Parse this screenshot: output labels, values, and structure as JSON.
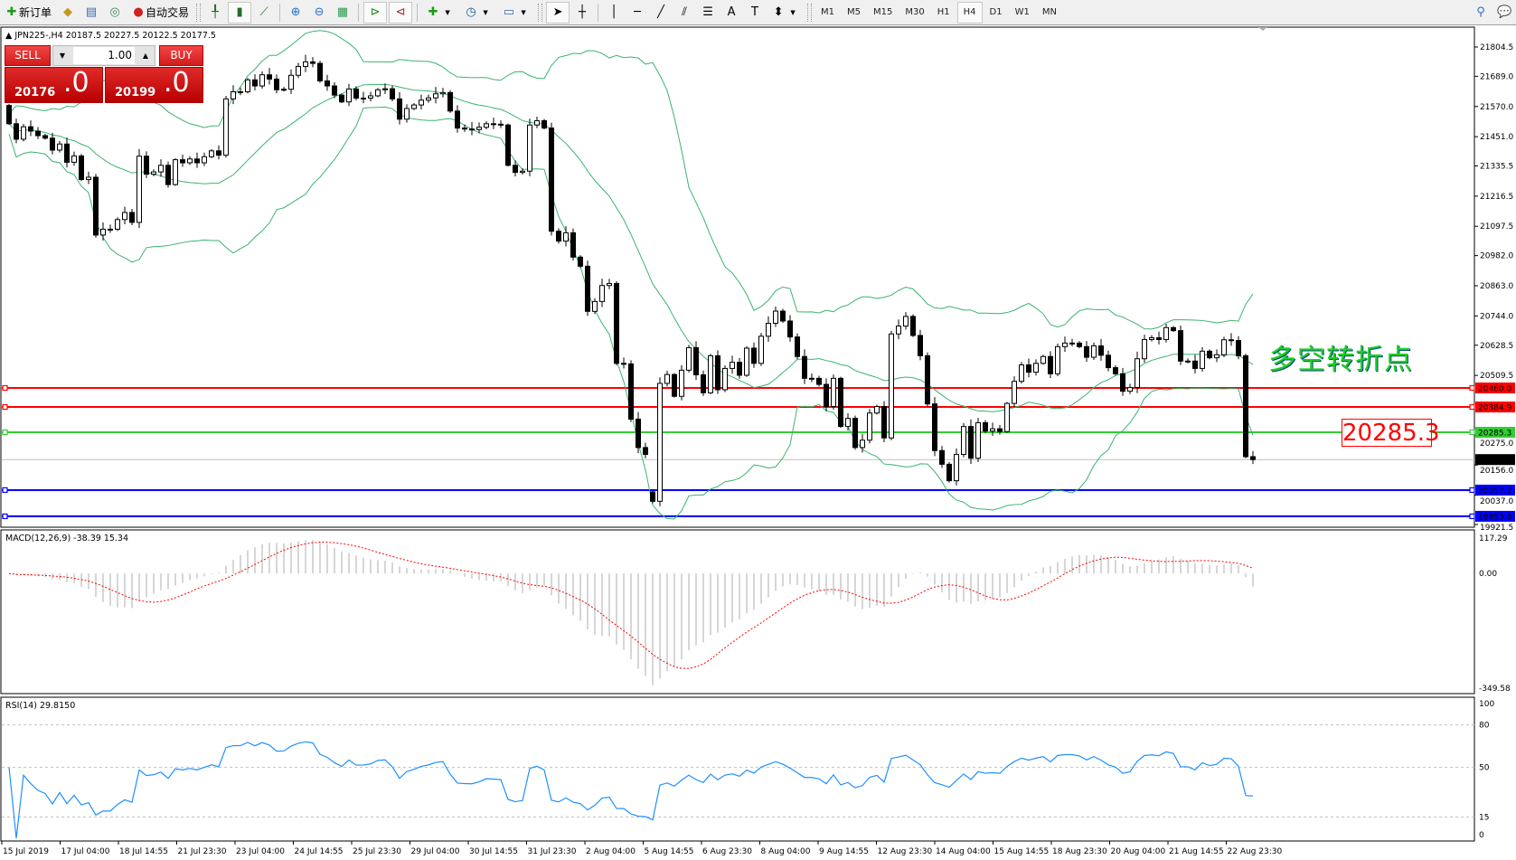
{
  "toolbar": {
    "new_order": "新订单",
    "auto_trading": "自动交易",
    "icons": [
      "new-order-icon",
      "gold-bars-icon",
      "market-watch-icon",
      "signals-icon",
      "auto-trading-icon",
      "bar-chart-icon",
      "candlestick-icon",
      "line-chart-icon",
      "zoom-in-icon",
      "zoom-out-icon",
      "tile-windows-icon",
      "chart-shift-icon",
      "autoscroll-icon",
      "indicators-icon",
      "periods-icon",
      "templates-icon",
      "cursor-icon",
      "crosshair-icon",
      "vertical-line-icon",
      "horizontal-line-icon",
      "trendline-icon",
      "equidistant-channel-icon",
      "fibonacci-icon",
      "text-icon",
      "text-label-icon",
      "arrows-icon",
      "search-icon",
      "chat-icon"
    ],
    "timeframes": [
      "M1",
      "M5",
      "M15",
      "M30",
      "H1",
      "H4",
      "D1",
      "W1",
      "MN"
    ],
    "active_timeframe": "H4"
  },
  "chart": {
    "symbol_info": "JPN225-,H4  20187.5 20227.5 20122.5 20177.5",
    "trade_panel": {
      "sell_label": "SELL",
      "buy_label": "BUY",
      "lot": "1.00",
      "sell_price_main": "20176",
      "sell_price_frac": ".0",
      "buy_price_main": "20199",
      "buy_price_frac": ".0"
    },
    "annotation_text": "多空转折点",
    "annotation_price": "20285.3",
    "price_axis": [
      "21804.5",
      "21689.0",
      "21570.0",
      "21451.0",
      "21335.5",
      "21216.5",
      "21097.5",
      "20982.0",
      "20863.0",
      "20744.0",
      "20628.5",
      "20509.5",
      "20275.0",
      "20156.0",
      "20037.0",
      "19921.5"
    ],
    "levels": [
      {
        "price": 20460.0,
        "label": "20460.0",
        "color": "#ff0000"
      },
      {
        "price": 20384.9,
        "label": "20384.9",
        "color": "#ff0000"
      },
      {
        "price": 20285.3,
        "label": "20285.3",
        "color": "#32cd32"
      },
      {
        "price": 20177.5,
        "label": "20177.5",
        "color": "#000000"
      },
      {
        "price": 20057.2,
        "label": "20057.2",
        "color": "#0000ff"
      },
      {
        "price": 19953.8,
        "label": "19953.8",
        "color": "#0000ff"
      }
    ],
    "colors": {
      "bands": "#3cb371",
      "bull": "#ffffff",
      "bear": "#000000",
      "macd_hist": "#c0c0c0",
      "macd_signal": "#ff0000",
      "rsi": "#1e90ff"
    },
    "first_open": 21574,
    "closes": [
      21502,
      21441,
      21490,
      21473,
      21455,
      21445,
      21398,
      21422,
      21350,
      21375,
      21282,
      21291,
      21063,
      21086,
      21086,
      21124,
      21152,
      21113,
      21374,
      21303,
      21312,
      21338,
      21262,
      21360,
      21348,
      21363,
      21348,
      21372,
      21395,
      21378,
      21600,
      21628,
      21628,
      21675,
      21651,
      21695,
      21678,
      21636,
      21638,
      21693,
      21728,
      21746,
      21740,
      21671,
      21651,
      21615,
      21588,
      21639,
      21603,
      21603,
      21612,
      21636,
      21640,
      21600,
      21520,
      21562,
      21576,
      21595,
      21604,
      21620,
      21625,
      21552,
      21485,
      21481,
      21479,
      21488,
      21502,
      21500,
      21497,
      21338,
      21310,
      21315,
      21497,
      21514,
      21485,
      21078,
      21039,
      21072,
      20976,
      20940,
      20762,
      20801,
      20864,
      20872,
      20557,
      20555,
      20337,
      20225,
      20198,
      20013,
      20478,
      20513,
      20427,
      20530,
      20619,
      20512,
      20441,
      20587,
      20453,
      20537,
      20561,
      20510,
      20617,
      20557,
      20664,
      20715,
      20763,
      20724,
      20661,
      20584,
      20498,
      20498,
      20474,
      20387,
      20498,
      20308,
      20340,
      20225,
      20254,
      20361,
      20387,
      20263,
      20673,
      20704,
      20742,
      20667,
      20587,
      20397,
      20213,
      20159,
      20094,
      20198,
      20308,
      20183,
      20323,
      20290,
      20299,
      20288,
      20399,
      20486,
      20551,
      20522,
      20557,
      20584,
      20516,
      20623,
      20637,
      20637,
      20623,
      20581,
      20626,
      20589,
      20540,
      20516,
      20447,
      20462,
      20575,
      20651,
      20658,
      20651,
      20698,
      20686,
      20566,
      20566,
      20537,
      20605,
      20579,
      20591,
      20650,
      20647,
      20587,
      20189,
      20177.5
    ],
    "gap_opens": {
      "89": 20050
    }
  },
  "macd": {
    "label": "MACD(12,26,9) -38.39 15.34",
    "axis": [
      "117.29",
      "0.00",
      "-349.58"
    ],
    "max": 117.29,
    "min": -349.58
  },
  "rsi": {
    "label": "RSI(14) 29.8150",
    "axis": [
      "100",
      "80",
      "50",
      "15",
      "0"
    ],
    "levels": [
      80,
      50,
      15
    ]
  },
  "time_axis": [
    "15 Jul 2019",
    "17 Jul 04:00",
    "18 Jul 14:55",
    "21 Jul 23:30",
    "23 Jul 04:00",
    "24 Jul 14:55",
    "25 Jul 23:30",
    "29 Jul 04:00",
    "30 Jul 14:55",
    "31 Jul 23:30",
    "2 Aug 04:00",
    "5 Aug 14:55",
    "6 Aug 23:30",
    "8 Aug 04:00",
    "9 Aug 14:55",
    "12 Aug 23:30",
    "14 Aug 04:00",
    "15 Aug 14:55",
    "18 Aug 23:30",
    "20 Aug 04:00",
    "21 Aug 14:55",
    "22 Aug 23:30"
  ]
}
